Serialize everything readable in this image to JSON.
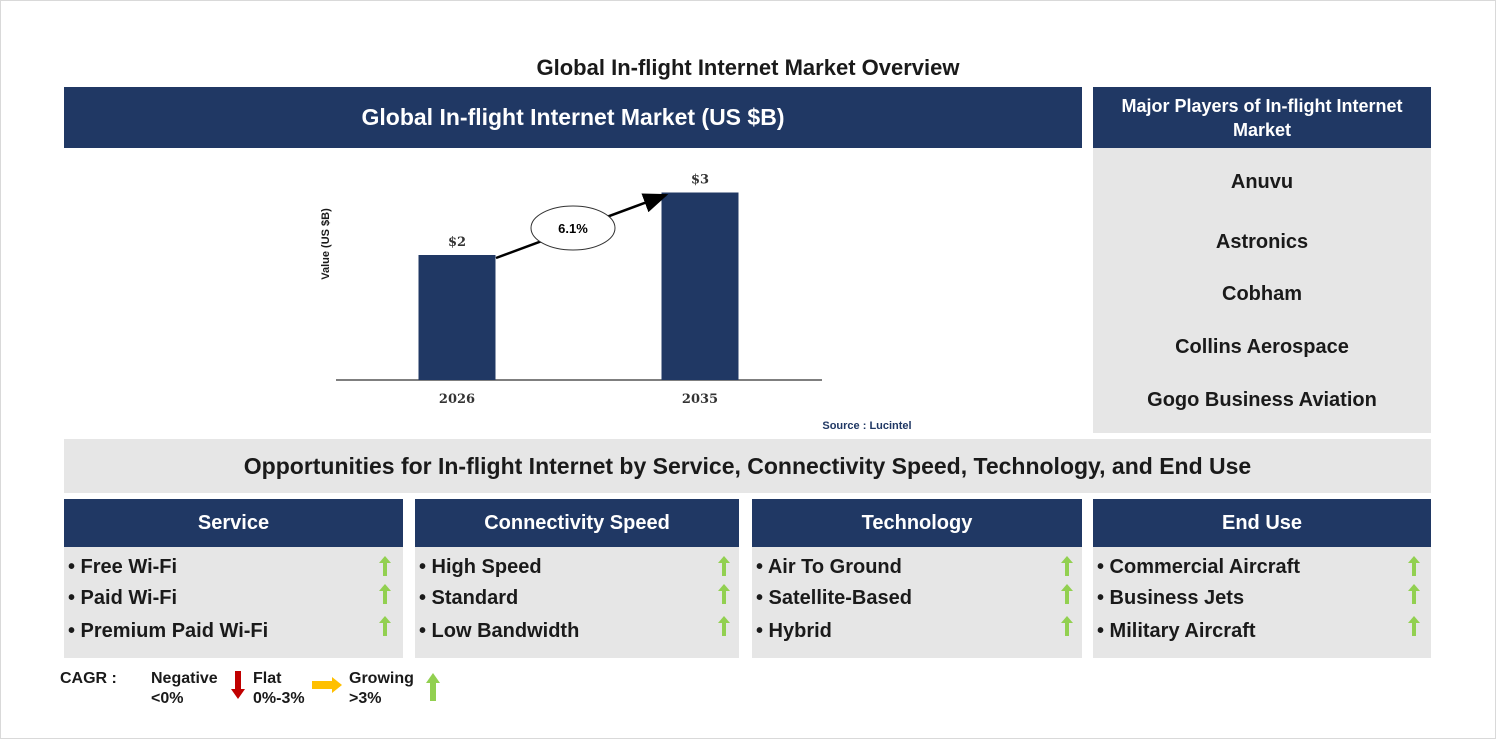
{
  "page_title": "Global In-flight Internet Market Overview",
  "chart_header": "Global In-flight Internet Market (US $B)",
  "chart_data": {
    "type": "bar",
    "categories": [
      "2026",
      "2035"
    ],
    "values": [
      2,
      3
    ],
    "value_labels": [
      "$2",
      "$3"
    ],
    "ylabel": "Value (US $B)",
    "cagr_label": "6.1%",
    "source": "Source : Lucintel",
    "bar_color": "#203864"
  },
  "players": {
    "header": "Major Players of In-flight Internet Market",
    "items": [
      "Anuvu",
      "Astronics",
      "Cobham",
      "Collins Aerospace",
      "Gogo Business Aviation"
    ]
  },
  "opportunities_title": "Opportunities for In-flight Internet by Service, Connectivity Speed, Technology, and End Use",
  "segments": [
    {
      "title": "Service",
      "items": [
        "• Free Wi-Fi",
        "• Paid Wi-Fi",
        "• Premium Paid Wi-Fi"
      ],
      "trend": [
        "growing",
        "growing",
        "growing"
      ]
    },
    {
      "title": "Connectivity Speed",
      "items": [
        "• High Speed",
        "• Standard",
        "• Low Bandwidth"
      ],
      "trend": [
        "growing",
        "growing",
        "growing"
      ]
    },
    {
      "title": "Technology",
      "items": [
        "• Air To Ground",
        "• Satellite-Based",
        "• Hybrid"
      ],
      "trend": [
        "growing",
        "growing",
        "growing"
      ]
    },
    {
      "title": "End Use",
      "items": [
        "• Commercial Aircraft",
        "• Business Jets",
        "• Military Aircraft"
      ],
      "trend": [
        "growing",
        "growing",
        "growing"
      ]
    }
  ],
  "legend": {
    "label": "CAGR :",
    "negative": {
      "line1": "Negative",
      "line2": "<0%",
      "color": "#c00000",
      "icon": "down-arrow"
    },
    "flat": {
      "line1": "Flat",
      "line2": "0%-3%",
      "color": "#ffc000",
      "icon": "right-arrow"
    },
    "growing": {
      "line1": "Growing",
      "line2": ">3%",
      "color": "#92d050",
      "icon": "up-arrow"
    }
  },
  "colors": {
    "navy": "#203864",
    "grey_panel": "#e6e6e6",
    "growth_green": "#92d050"
  }
}
